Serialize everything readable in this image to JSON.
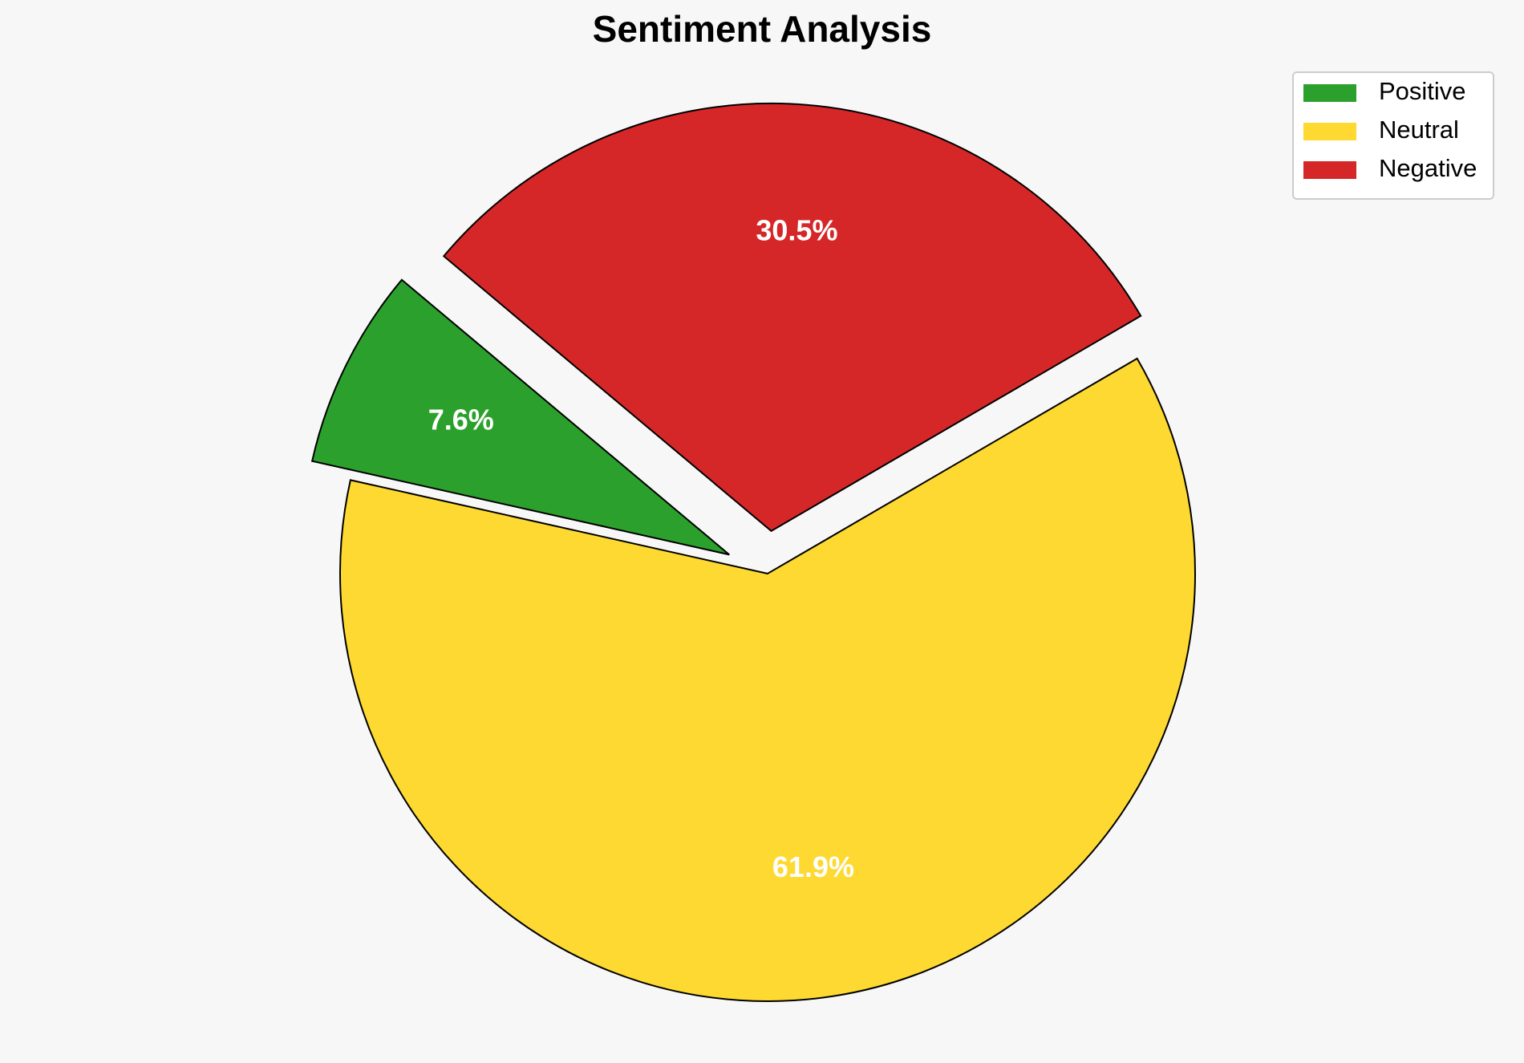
{
  "chart_data": {
    "type": "pie",
    "title": "Sentiment Analysis",
    "labels": [
      "Positive",
      "Neutral",
      "Negative"
    ],
    "values": [
      7.6,
      61.9,
      30.5
    ],
    "value_labels": [
      "7.6%",
      "61.9%",
      "30.5%"
    ],
    "colors": [
      "#2ca02c",
      "#fdd931",
      "#d62728"
    ],
    "explode": [
      0.1,
      0,
      0.1
    ],
    "startangle": 140,
    "legend": "upper right"
  }
}
